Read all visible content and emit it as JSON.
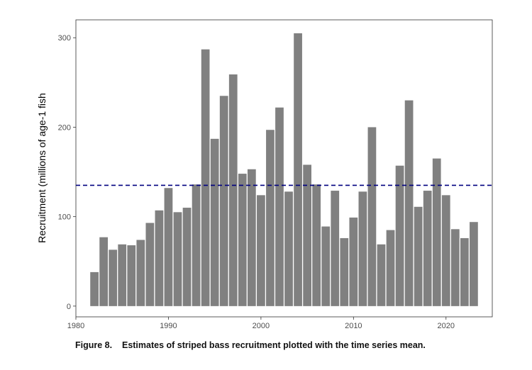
{
  "chart_data": {
    "type": "bar",
    "title": "",
    "xlabel": "",
    "ylabel": "Recruitment (millions of age-1 fish",
    "x": [
      1982,
      1983,
      1984,
      1985,
      1986,
      1987,
      1988,
      1989,
      1990,
      1991,
      1992,
      1993,
      1994,
      1995,
      1996,
      1997,
      1998,
      1999,
      2000,
      2001,
      2002,
      2003,
      2004,
      2005,
      2006,
      2007,
      2008,
      2009,
      2010,
      2011,
      2012,
      2013,
      2014,
      2015,
      2016,
      2017,
      2018,
      2019,
      2020,
      2021,
      2022,
      2023
    ],
    "values": [
      38,
      77,
      63,
      69,
      68,
      74,
      93,
      107,
      132,
      105,
      110,
      136,
      287,
      187,
      235,
      259,
      148,
      153,
      124,
      197,
      222,
      128,
      305,
      158,
      136,
      89,
      129,
      76,
      99,
      128,
      200,
      69,
      85,
      157,
      230,
      111,
      129,
      165,
      124,
      86,
      76,
      94
    ],
    "xlim": [
      1980,
      2025
    ],
    "ylim": [
      -12,
      320
    ],
    "xticks": [
      1980,
      1990,
      2000,
      2010,
      2020
    ],
    "yticks": [
      0,
      100,
      200,
      300
    ],
    "mean_line": 135,
    "grid": false,
    "bar_color": "#808080",
    "mean_line_color": "#000080"
  },
  "caption": "Figure 8.    Estimates of striped bass recruitment plotted with the time series mean."
}
